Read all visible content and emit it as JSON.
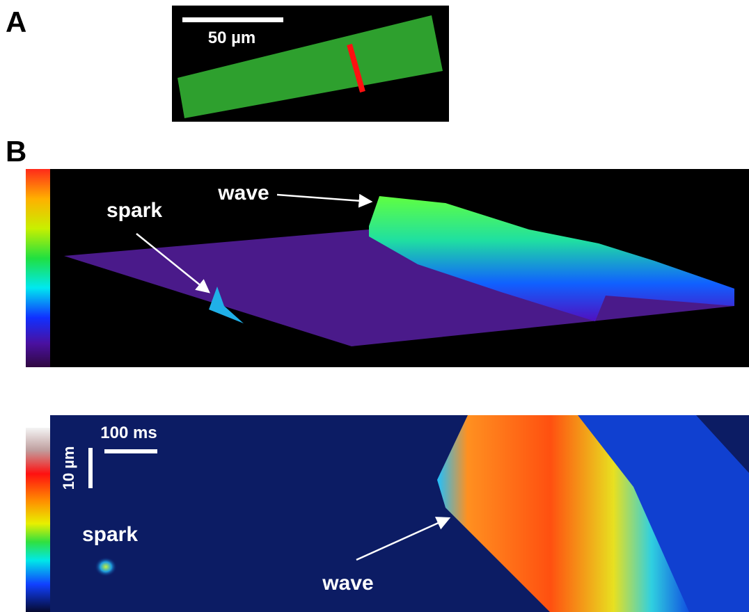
{
  "panel_a": {
    "label": "A",
    "scale_bar_label": "50 µm"
  },
  "panel_b": {
    "label": "B",
    "surface_plot": {
      "wave_label": "wave",
      "spark_label": "spark"
    },
    "line_scan": {
      "time_bar_label": "100 ms",
      "space_bar_label": "10 µm",
      "spark_label": "spark",
      "wave_label": "wave"
    }
  }
}
